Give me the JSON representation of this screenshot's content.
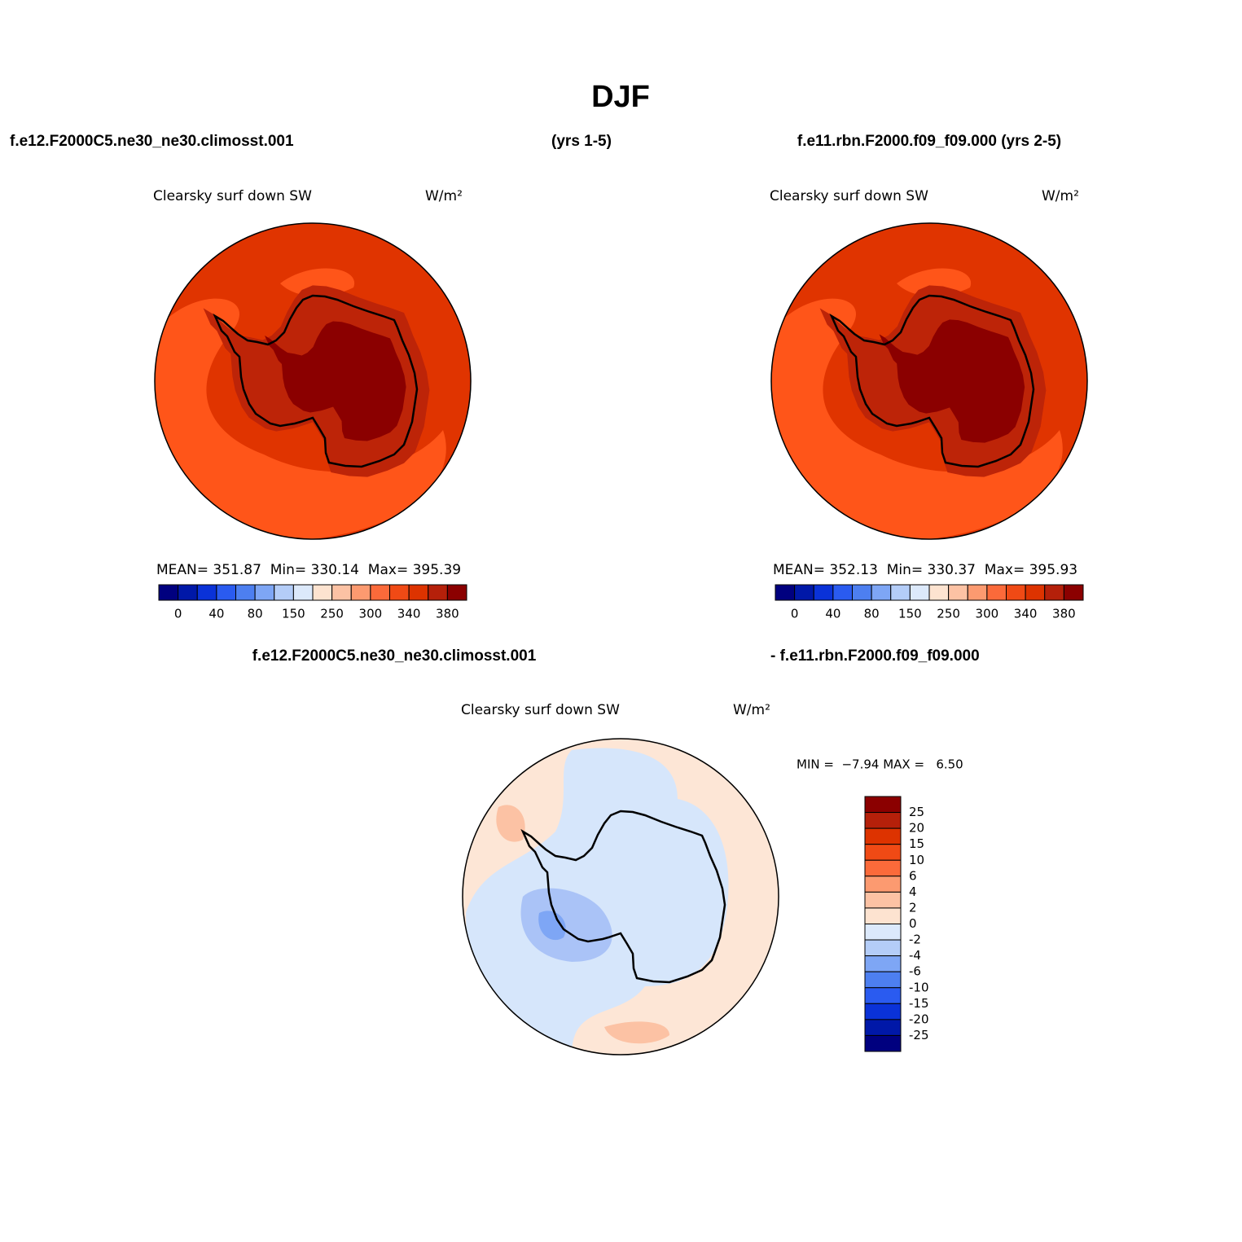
{
  "title": "DJF",
  "header": {
    "left": "f.e12.F2000C5.ne30_ne30.climosst.001",
    "middle": "(yrs 1-5)",
    "right": "f.e11.rbn.F2000.f09_f09.000 (yrs 2-5)"
  },
  "panels": [
    {
      "title": "Clearsky surf down SW",
      "units": "W/m²",
      "stats": "MEAN= 351.87  Min= 330.14  Max= 395.39",
      "colorbar": {
        "labels": [
          0,
          40,
          80,
          150,
          250,
          300,
          340,
          380
        ],
        "colors": [
          "#00007f",
          "#0018a8",
          "#0a32d8",
          "#2a5bf0",
          "#4d7ff0",
          "#7ea6f5",
          "#b4cdf8",
          "#dce9fb",
          "#fde3d0",
          "#fcc2a4",
          "#fc9a70",
          "#fb6a3a",
          "#f04a15",
          "#dd3300",
          "#b5200a",
          "#8b0000"
        ]
      }
    },
    {
      "title": "Clearsky surf down SW",
      "units": "W/m²",
      "stats": "MEAN= 352.13  Min= 330.37  Max= 395.93",
      "colorbar": {
        "labels": [
          0,
          40,
          80,
          150,
          250,
          300,
          340,
          380
        ],
        "colors": [
          "#00007f",
          "#0018a8",
          "#0a32d8",
          "#2a5bf0",
          "#4d7ff0",
          "#7ea6f5",
          "#b4cdf8",
          "#dce9fb",
          "#fde3d0",
          "#fcc2a4",
          "#fc9a70",
          "#fb6a3a",
          "#f04a15",
          "#dd3300",
          "#b5200a",
          "#8b0000"
        ]
      }
    }
  ],
  "difference": {
    "header_left": "f.e12.F2000C5.ne30_ne30.climosst.001",
    "header_right": "- f.e11.rbn.F2000.f09_f09.000",
    "title": "Clearsky surf down SW",
    "units": "W/m²",
    "stats": "MIN =  −7.94 MAX =   6.50",
    "colorbar": {
      "labels": [
        25,
        20,
        15,
        10,
        6,
        4,
        2,
        0,
        -2,
        -4,
        -6,
        -10,
        -15,
        -20,
        -25
      ],
      "colors": [
        "#8b0000",
        "#b5200a",
        "#dd3300",
        "#f04a15",
        "#fb6a3a",
        "#fc9a70",
        "#fcc2a4",
        "#fde3d0",
        "#dce9fb",
        "#b4cdf8",
        "#7ea6f5",
        "#4d7ff0",
        "#2a5bf0",
        "#0a32d8",
        "#0018a8",
        "#00007f"
      ]
    }
  }
}
